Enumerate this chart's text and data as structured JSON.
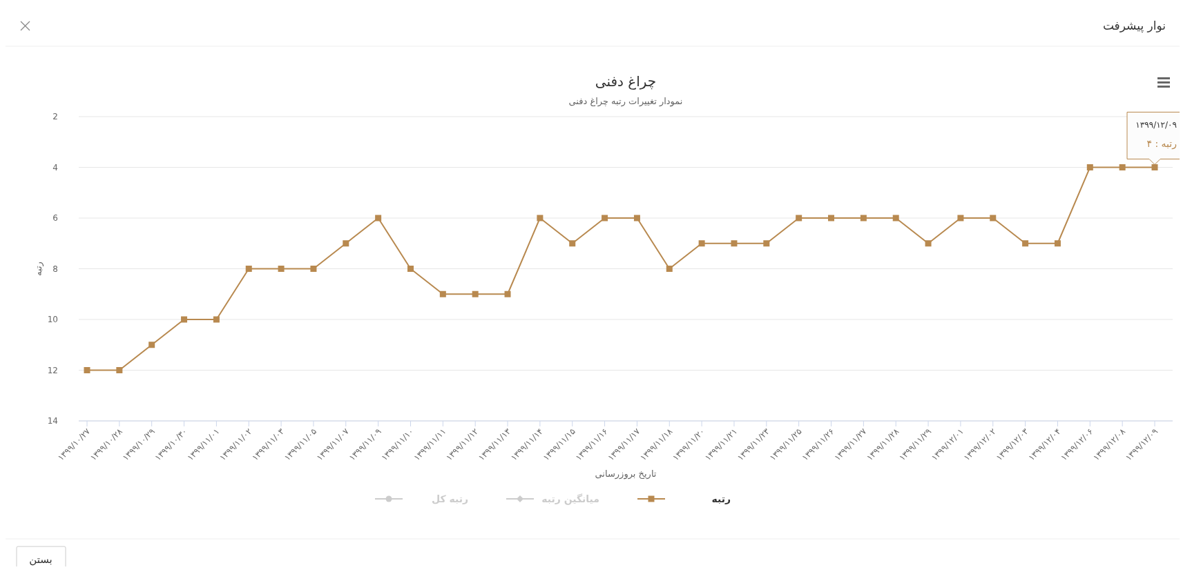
{
  "chart_data": {
    "type": "line",
    "title": "چراغ دفنی",
    "subtitle": "نمودار تغییرات رتبه چراغ دفنی",
    "xlabel": "تاریخ بروزرسانی",
    "ylabel": "رتبه",
    "categories": [
      "۱۳۹۹/۱۰/۲۷",
      "۱۳۹۹/۱۰/۲۸",
      "۱۳۹۹/۱۰/۲۹",
      "۱۳۹۹/۱۰/۳۰",
      "۱۳۹۹/۱۱/۰۱",
      "۱۳۹۹/۱۱/۰۲",
      "۱۳۹۹/۱۱/۰۳",
      "۱۳۹۹/۱۱/۰۵",
      "۱۳۹۹/۱۱/۰۷",
      "۱۳۹۹/۱۱/۰۹",
      "۱۳۹۹/۱۱/۱۰",
      "۱۳۹۹/۱۱/۱۱",
      "۱۳۹۹/۱۱/۱۲",
      "۱۳۹۹/۱۱/۱۳",
      "۱۳۹۹/۱۱/۱۴",
      "۱۳۹۹/۱۱/۱۵",
      "۱۳۹۹/۱۱/۱۶",
      "۱۳۹۹/۱۱/۱۷",
      "۱۳۹۹/۱۱/۱۸",
      "۱۳۹۹/۱۱/۲۰",
      "۱۳۹۹/۱۱/۲۱",
      "۱۳۹۹/۱۱/۲۳",
      "۱۳۹۹/۱۱/۲۵",
      "۱۳۹۹/۱۱/۲۶",
      "۱۳۹۹/۱۱/۲۷",
      "۱۳۹۹/۱۱/۲۸",
      "۱۳۹۹/۱۱/۲۹",
      "۱۳۹۹/۱۲/۰۱",
      "۱۳۹۹/۱۲/۰۲",
      "۱۳۹۹/۱۲/۰۳",
      "۱۳۹۹/۱۲/۰۴",
      "۱۳۹۹/۱۲/۰۶",
      "۱۳۹۹/۱۲/۰۸",
      "۱۳۹۹/۱۲/۰۹"
    ],
    "series": [
      {
        "name": "رتبه",
        "color": "#b8894f",
        "marker": "square",
        "values": [
          12,
          12,
          11,
          10,
          10,
          8,
          8,
          8,
          7,
          6,
          8,
          9,
          9,
          9,
          6,
          7,
          6,
          6,
          8,
          7,
          7,
          7,
          6,
          6,
          6,
          6,
          7,
          6,
          6,
          7,
          7,
          4,
          4,
          4
        ]
      },
      {
        "name": "میانگین رتبه",
        "color": "#cccccc",
        "marker": "diamond",
        "values": [
          null,
          null,
          null,
          null,
          null,
          null,
          null,
          null,
          null,
          null,
          null,
          null,
          null,
          null,
          null,
          null,
          null,
          null,
          null,
          null,
          null,
          null,
          null,
          null,
          null,
          null,
          null,
          null,
          null,
          null,
          null,
          null,
          null,
          null
        ]
      },
      {
        "name": "رتبه کل",
        "color": "#cccccc",
        "marker": "circle",
        "values": [
          null,
          null,
          null,
          null,
          null,
          null,
          null,
          null,
          null,
          null,
          null,
          null,
          null,
          null,
          null,
          null,
          null,
          null,
          null,
          null,
          null,
          null,
          null,
          null,
          null,
          null,
          null,
          null,
          null,
          null,
          null,
          null,
          null,
          null
        ]
      }
    ],
    "ylim": [
      14,
      2
    ],
    "yticks": [
      2,
      4,
      6,
      8,
      10,
      12,
      14
    ],
    "grid": "y",
    "legend": "bottom",
    "line_style": "solid",
    "annotations": [
      "نوار پیشرفت",
      "بستن",
      {
        "text": "۱۳۹۹/۱۲/۰۹\nرتبه : ۴",
        "x": "۱۳۹۹/۱۲/۰۹",
        "y": 4
      }
    ]
  }
}
